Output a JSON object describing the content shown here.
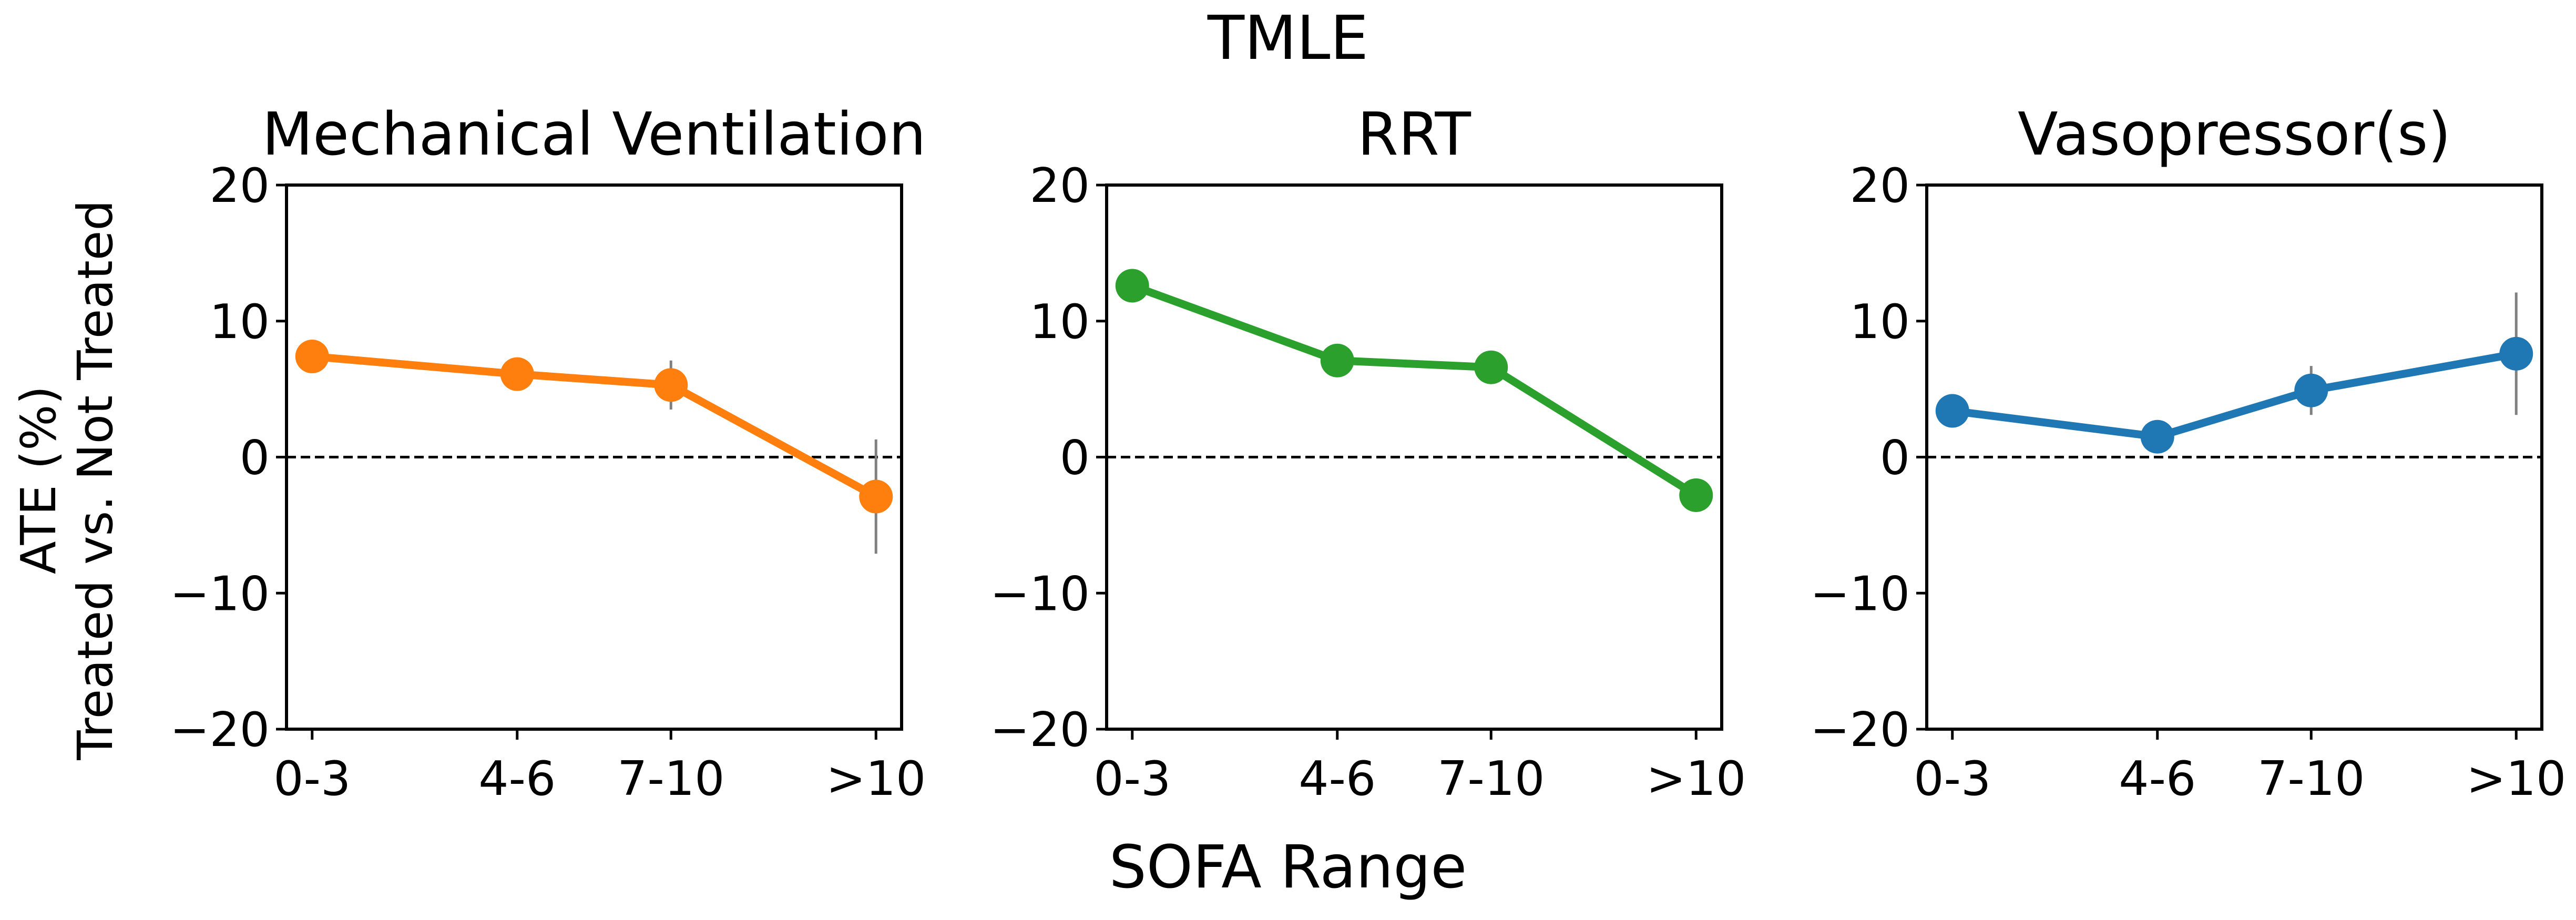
{
  "figure": {
    "title": "TMLE",
    "xlabel": "SOFA Range",
    "ylabel_line1": "ATE (%)",
    "ylabel_line2": "Treated vs. Not Treated"
  },
  "chart_data": [
    {
      "type": "line",
      "title": "Mechanical Ventilation",
      "categories": [
        "0-3",
        "4-6",
        "7-10",
        ">10"
      ],
      "x": [
        0.5,
        2.5,
        4,
        6
      ],
      "y": [
        7.4,
        6.1,
        5.3,
        -2.9
      ],
      "error_low": [
        7.0,
        5.7,
        3.5,
        -7.1
      ],
      "error_high": [
        7.8,
        6.5,
        7.1,
        1.3
      ],
      "xlim": [
        0.25,
        6.25
      ],
      "ylim": [
        -20,
        20
      ],
      "yticks": [
        "−20",
        "−10",
        "0",
        "10",
        "20"
      ],
      "reference_line": 0,
      "color": "#ff7f0e",
      "errorbar_color": "#808080",
      "grid": false
    },
    {
      "type": "line",
      "title": "RRT",
      "categories": [
        "0-3",
        "4-6",
        "7-10",
        ">10"
      ],
      "x": [
        0.5,
        2.5,
        4,
        6
      ],
      "y": [
        12.6,
        7.1,
        6.6,
        -2.8
      ],
      "error_low": [
        12.2,
        6.7,
        6.2,
        -4.0
      ],
      "error_high": [
        13.0,
        7.5,
        7.0,
        -1.6
      ],
      "xlim": [
        0.25,
        6.25
      ],
      "ylim": [
        -20,
        20
      ],
      "yticks": [
        "−20",
        "−10",
        "0",
        "10",
        "20"
      ],
      "reference_line": 0,
      "color": "#2ca02c",
      "errorbar_color": "#808080",
      "grid": false
    },
    {
      "type": "line",
      "title": "Vasopressor(s)",
      "categories": [
        "0-3",
        "4-6",
        "7-10",
        ">10"
      ],
      "x": [
        0.5,
        2.5,
        4,
        6
      ],
      "y": [
        3.4,
        1.5,
        4.9,
        7.6
      ],
      "error_low": [
        3.0,
        0.9,
        3.1,
        3.1
      ],
      "error_high": [
        3.8,
        2.1,
        6.7,
        12.1
      ],
      "xlim": [
        0.25,
        6.25
      ],
      "ylim": [
        -20,
        20
      ],
      "yticks": [
        "−20",
        "−10",
        "0",
        "10",
        "20"
      ],
      "reference_line": 0,
      "color": "#1f77b4",
      "errorbar_color": "#808080",
      "grid": false
    }
  ]
}
